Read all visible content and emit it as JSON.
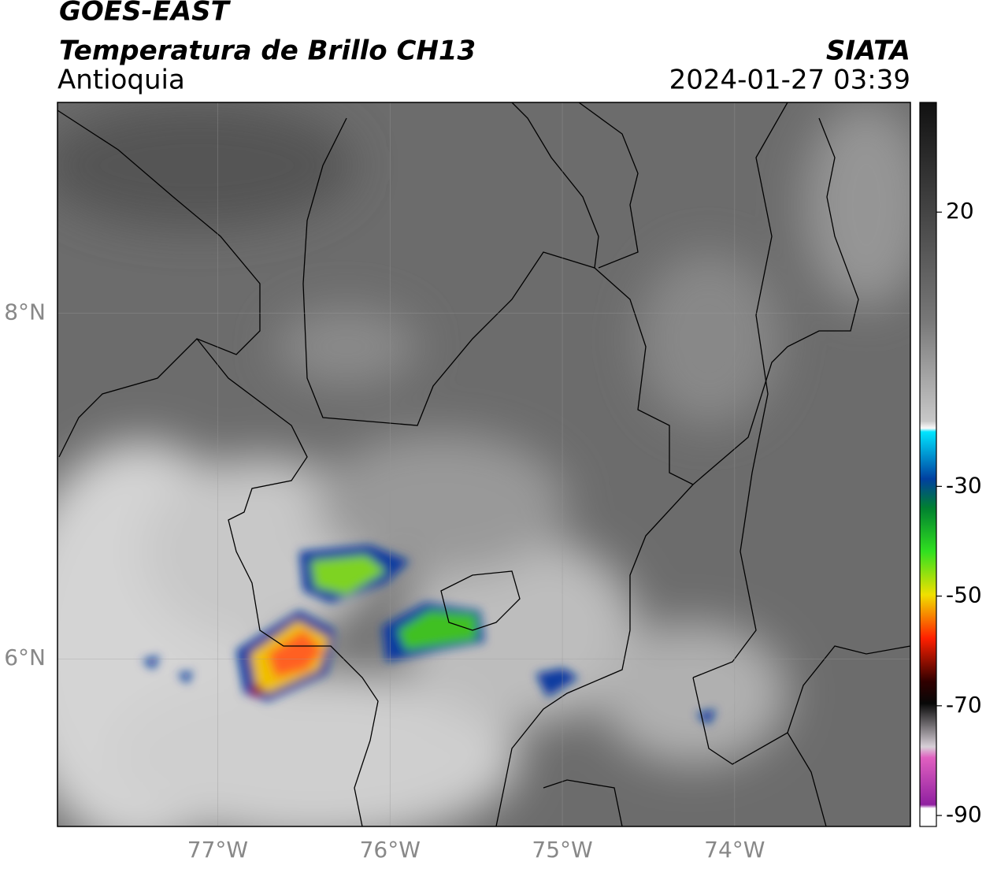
{
  "header": {
    "title": "GOES-EAST",
    "subtitle": "Temperatura de Brillo CH13",
    "region": "Antioquia",
    "source": "SIATA",
    "datetime": "2024-01-27 03:39"
  },
  "map": {
    "lonlim": [
      -77.93,
      -72.98
    ],
    "latlim": [
      5.03,
      9.22
    ],
    "lon_ticks": [
      {
        "value": -77,
        "label": "77°W"
      },
      {
        "value": -76,
        "label": "76°W"
      },
      {
        "value": -75,
        "label": "75°W"
      },
      {
        "value": -74,
        "label": "74°W"
      }
    ],
    "lat_ticks": [
      {
        "value": 8,
        "label": "8°N"
      },
      {
        "value": 6,
        "label": "6°N"
      }
    ]
  },
  "colorbar": {
    "lim": [
      -92,
      40
    ],
    "ticks": [
      20,
      -30,
      -50,
      -70,
      -90
    ]
  }
}
